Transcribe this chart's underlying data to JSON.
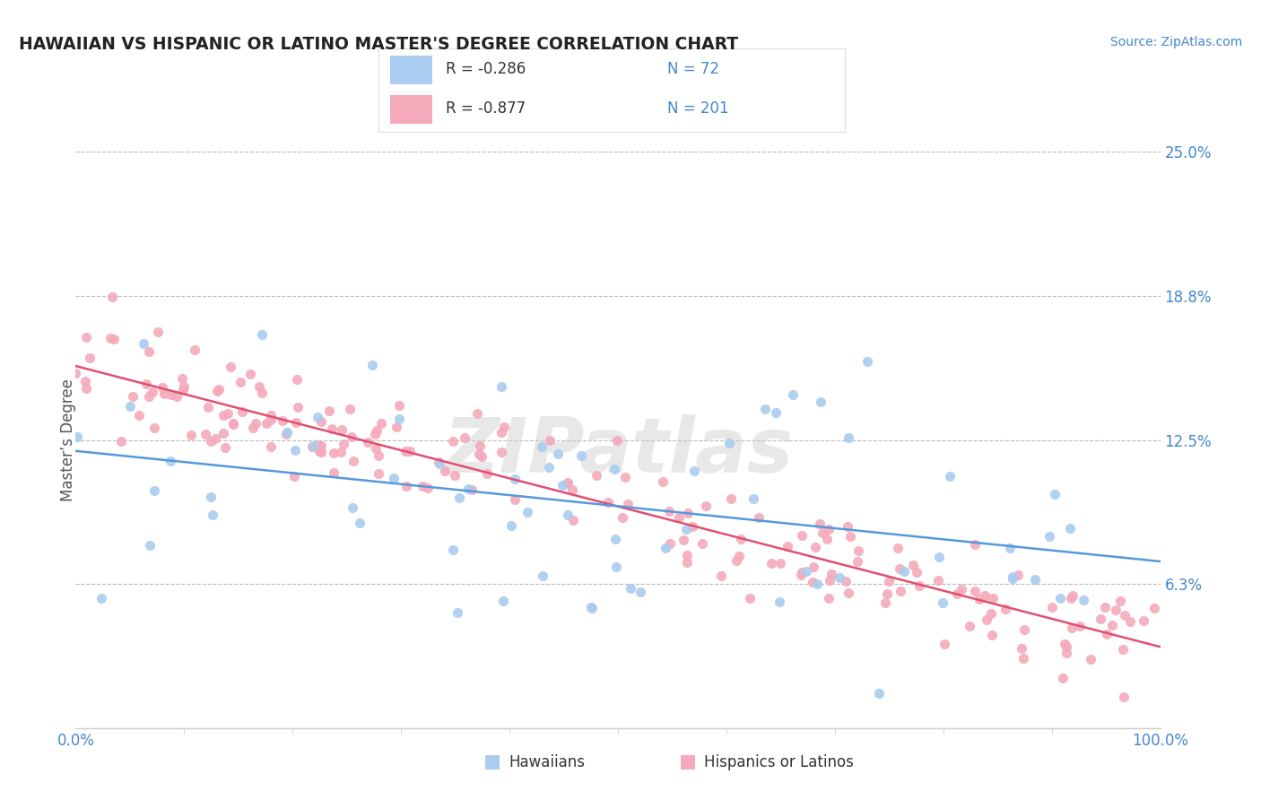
{
  "title": "HAWAIIAN VS HISPANIC OR LATINO MASTER'S DEGREE CORRELATION CHART",
  "source_text": "Source: ZipAtlas.com",
  "ylabel": "Master’s Degree",
  "x_min": 0.0,
  "x_max": 100.0,
  "y_min": 0.0,
  "y_max": 25.0,
  "y_tick_vals": [
    0.0,
    6.25,
    12.5,
    18.75,
    25.0
  ],
  "y_tick_labels": [
    "",
    "6.3%",
    "12.5%",
    "18.8%",
    "25.0%"
  ],
  "x_tick_vals": [
    0.0,
    100.0
  ],
  "x_tick_labels": [
    "0.0%",
    "100.0%"
  ],
  "hawaiian_fill_color": "#aaccf0",
  "hawaiian_edge_color": "#aaccf0",
  "hispanic_fill_color": "#f4aabb",
  "hispanic_edge_color": "#f4aabb",
  "hawaiian_line_color": "#5599dd",
  "hispanic_line_color": "#e05070",
  "r_hawaiian": -0.286,
  "n_hawaiian": 72,
  "r_hispanic": -0.877,
  "n_hispanic": 201,
  "legend_hawaiian_r": "-0.286",
  "legend_hawaiian_n": "72",
  "legend_hispanic_r": "-0.877",
  "legend_hispanic_n": "201",
  "watermark_text": "ZIPatlas",
  "grid_color": "#bbbbbb",
  "spine_color": "#cccccc",
  "tick_color": "#4488cc",
  "title_color": "#222222",
  "ylabel_color": "#555555",
  "r_text_color": "#333333",
  "n_text_color": "#4488cc",
  "legend_box_color": "#dddddd",
  "bottom_legend_label1": "Hawaiians",
  "bottom_legend_label2": "Hispanics or Latinos"
}
